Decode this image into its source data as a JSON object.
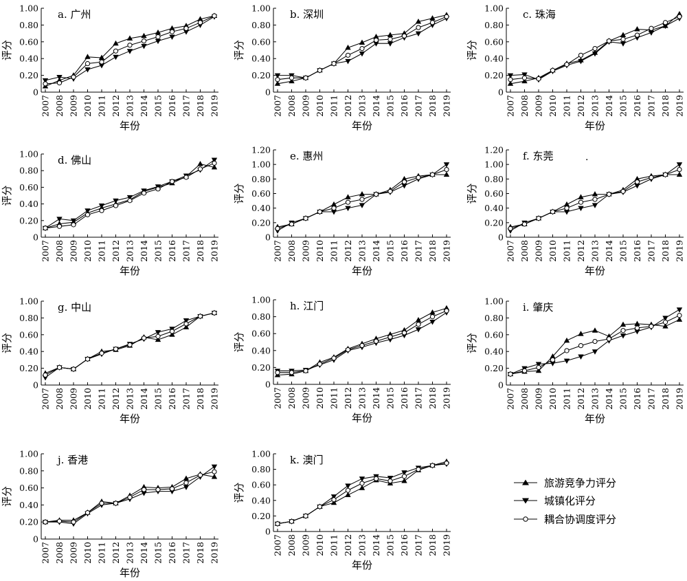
{
  "figure": {
    "xlabel": "年份",
    "ylabel": "评分",
    "legend": {
      "placement": "bottom-right",
      "entries": [
        "旅游竞争力评分",
        "城镇化评分",
        "耦合协调度评分"
      ]
    },
    "stray_mark": "."
  },
  "chart_data": [
    {
      "type": "line",
      "panel": "a",
      "title": "a. 广州",
      "x": [
        "2007",
        "2008",
        "2009",
        "2010",
        "2011",
        "2012",
        "2013",
        "2014",
        "2015",
        "2016",
        "2017",
        "2018",
        "2019"
      ],
      "ylim": [
        0,
        1.0
      ],
      "yticks": [
        "0",
        "0.20",
        "0.40",
        "0.60",
        "0.80",
        "1.00"
      ],
      "series": [
        {
          "name": "旅游竞争力评分",
          "marker": "triangle-up",
          "values": [
            0.07,
            0.14,
            0.2,
            0.42,
            0.41,
            0.58,
            0.64,
            0.67,
            0.71,
            0.76,
            0.79,
            0.87,
            0.91
          ]
        },
        {
          "name": "城镇化评分",
          "marker": "triangle-down",
          "values": [
            0.14,
            0.18,
            0.16,
            0.27,
            0.32,
            0.42,
            0.49,
            0.55,
            0.61,
            0.66,
            0.72,
            0.8,
            0.9
          ]
        },
        {
          "name": "耦合协调度评分",
          "marker": "circle",
          "values": [
            0.1,
            0.11,
            0.18,
            0.34,
            0.36,
            0.49,
            0.56,
            0.61,
            0.66,
            0.72,
            0.76,
            0.83,
            0.91
          ]
        }
      ]
    },
    {
      "type": "line",
      "panel": "b",
      "title": "b. 深圳",
      "x": [
        "2007",
        "2008",
        "2009",
        "2010",
        "2011",
        "2012",
        "2013",
        "2014",
        "2015",
        "2016",
        "2017",
        "2018",
        "2019"
      ],
      "ylim": [
        0,
        1.0
      ],
      "yticks": [
        "0",
        "0.20",
        "0.40",
        "0.60",
        "0.80",
        "1.00"
      ],
      "series": [
        {
          "name": "旅游竞争力评分",
          "marker": "triangle-up",
          "values": [
            0.1,
            0.13,
            0.17,
            0.26,
            0.34,
            0.53,
            0.59,
            0.66,
            0.68,
            0.7,
            0.84,
            0.88,
            0.92
          ]
        },
        {
          "name": "城镇化评分",
          "marker": "triangle-down",
          "values": [
            0.2,
            0.2,
            0.17,
            0.26,
            0.34,
            0.37,
            0.46,
            0.58,
            0.58,
            0.65,
            0.7,
            0.8,
            0.88
          ]
        },
        {
          "name": "耦合协调度评分",
          "marker": "circle",
          "values": [
            0.15,
            0.17,
            0.17,
            0.26,
            0.34,
            0.44,
            0.52,
            0.62,
            0.63,
            0.67,
            0.77,
            0.83,
            0.9
          ]
        }
      ]
    },
    {
      "type": "line",
      "panel": "c",
      "title": "c. 珠海",
      "x": [
        "2007",
        "2008",
        "2009",
        "2010",
        "2011",
        "2012",
        "2013",
        "2014",
        "2015",
        "2016",
        "2017",
        "2018",
        "2019"
      ],
      "ylim": [
        0,
        1.0
      ],
      "yticks": [
        "0",
        "0.20",
        "0.40",
        "0.60",
        "0.80",
        "1.00"
      ],
      "series": [
        {
          "name": "旅游竞争力评分",
          "marker": "triangle-up",
          "values": [
            0.1,
            0.13,
            0.17,
            0.26,
            0.34,
            0.38,
            0.47,
            0.61,
            0.68,
            0.75,
            0.74,
            0.79,
            0.93
          ]
        },
        {
          "name": "城镇化评分",
          "marker": "triangle-down",
          "values": [
            0.2,
            0.21,
            0.15,
            0.25,
            0.32,
            0.37,
            0.46,
            0.6,
            0.58,
            0.65,
            0.71,
            0.79,
            0.88
          ]
        },
        {
          "name": "耦合协调度评分",
          "marker": "circle",
          "values": [
            0.15,
            0.17,
            0.16,
            0.26,
            0.33,
            0.44,
            0.52,
            0.61,
            0.63,
            0.68,
            0.76,
            0.83,
            0.9
          ]
        }
      ]
    },
    {
      "type": "line",
      "panel": "d",
      "title": "d. 佛山",
      "x": [
        "2007",
        "2008",
        "2009",
        "2010",
        "2011",
        "2012",
        "2013",
        "2014",
        "2015",
        "2016",
        "2017",
        "2018",
        "2019"
      ],
      "ylim": [
        0,
        1.0
      ],
      "yticks": [
        "0",
        "0.20",
        "0.40",
        "0.60",
        "0.80",
        "1.00"
      ],
      "series": [
        {
          "name": "旅游竞争力评分",
          "marker": "triangle-up",
          "values": [
            0.11,
            0.16,
            0.18,
            0.29,
            0.35,
            0.4,
            0.45,
            0.55,
            0.6,
            0.65,
            0.73,
            0.88,
            0.84
          ]
        },
        {
          "name": "城镇化评分",
          "marker": "triangle-down",
          "values": [
            0.11,
            0.22,
            0.2,
            0.32,
            0.38,
            0.44,
            0.48,
            0.56,
            0.61,
            0.67,
            0.74,
            0.81,
            0.93
          ]
        },
        {
          "name": "耦合协调度评分",
          "marker": "circle",
          "values": [
            0.11,
            0.13,
            0.15,
            0.27,
            0.32,
            0.38,
            0.44,
            0.53,
            0.58,
            0.67,
            0.72,
            0.82,
            0.89
          ]
        }
      ]
    },
    {
      "type": "line",
      "panel": "e",
      "title": "e. 惠州",
      "x": [
        "2007",
        "2008",
        "2009",
        "2010",
        "2011",
        "2012",
        "2013",
        "2014",
        "2015",
        "2016",
        "2017",
        "2018",
        "2019"
      ],
      "ylim": [
        0,
        1.2
      ],
      "yticks": [
        "0",
        "0.20",
        "0.40",
        "0.60",
        "0.80",
        "1.00",
        "1.20"
      ],
      "series": [
        {
          "name": "旅游竞争力评分",
          "marker": "triangle-up",
          "values": [
            0.14,
            0.18,
            0.26,
            0.35,
            0.45,
            0.55,
            0.59,
            0.59,
            0.65,
            0.8,
            0.84,
            0.86,
            0.86
          ]
        },
        {
          "name": "城镇化评分",
          "marker": "triangle-down",
          "values": [
            0.09,
            0.2,
            0.26,
            0.35,
            0.35,
            0.4,
            0.44,
            0.59,
            0.62,
            0.71,
            0.8,
            0.86,
            1.0
          ]
        },
        {
          "name": "耦合协调度评分",
          "marker": "circle",
          "values": [
            0.12,
            0.18,
            0.26,
            0.35,
            0.4,
            0.48,
            0.52,
            0.59,
            0.63,
            0.76,
            0.82,
            0.86,
            0.93
          ]
        }
      ]
    },
    {
      "type": "line",
      "panel": "f",
      "title": "f. 东莞",
      "x": [
        "2007",
        "2008",
        "2009",
        "2010",
        "2011",
        "2012",
        "2013",
        "2014",
        "2015",
        "2016",
        "2017",
        "2018",
        "2019"
      ],
      "ylim": [
        0,
        1.2
      ],
      "yticks": [
        "0",
        "0.20",
        "0.40",
        "0.60",
        "0.80",
        "1.00",
        "1.20"
      ],
      "series": [
        {
          "name": "旅游竞争力评分",
          "marker": "triangle-up",
          "values": [
            0.14,
            0.18,
            0.26,
            0.35,
            0.45,
            0.55,
            0.59,
            0.59,
            0.65,
            0.8,
            0.84,
            0.86,
            0.86
          ]
        },
        {
          "name": "城镇化评分",
          "marker": "triangle-down",
          "values": [
            0.09,
            0.2,
            0.26,
            0.35,
            0.35,
            0.4,
            0.44,
            0.59,
            0.62,
            0.71,
            0.8,
            0.86,
            1.0
          ]
        },
        {
          "name": "耦合协调度评分",
          "marker": "circle",
          "values": [
            0.12,
            0.18,
            0.26,
            0.35,
            0.4,
            0.48,
            0.52,
            0.59,
            0.63,
            0.76,
            0.82,
            0.86,
            0.93
          ]
        }
      ]
    },
    {
      "type": "line",
      "panel": "g",
      "title": "g. 中山",
      "x": [
        "2007",
        "2008",
        "2009",
        "2010",
        "2011",
        "2012",
        "2013",
        "2014",
        "2015",
        "2016",
        "2017",
        "2018",
        "2019"
      ],
      "ylim": [
        0,
        1.0
      ],
      "yticks": [
        "0",
        "0.20",
        "0.40",
        "0.60",
        "0.80",
        "1.00"
      ],
      "series": [
        {
          "name": "旅游竞争力评分",
          "marker": "triangle-up",
          "values": [
            0.14,
            0.21,
            0.19,
            0.31,
            0.4,
            0.42,
            0.47,
            0.57,
            0.54,
            0.6,
            0.69,
            0.82,
            0.86
          ]
        },
        {
          "name": "城镇化评分",
          "marker": "triangle-down",
          "values": [
            0.09,
            0.21,
            0.19,
            0.31,
            0.37,
            0.43,
            0.49,
            0.55,
            0.63,
            0.67,
            0.77,
            0.82,
            0.86
          ]
        },
        {
          "name": "耦合协调度评分",
          "marker": "circle",
          "values": [
            0.12,
            0.21,
            0.19,
            0.31,
            0.38,
            0.43,
            0.48,
            0.56,
            0.58,
            0.64,
            0.73,
            0.82,
            0.86
          ]
        }
      ]
    },
    {
      "type": "line",
      "panel": "h",
      "title": "h. 江门",
      "x": [
        "2007",
        "2008",
        "2009",
        "2010",
        "2011",
        "2012",
        "2013",
        "2014",
        "2015",
        "2016",
        "2017",
        "2018",
        "2019"
      ],
      "ylim": [
        0,
        1.0
      ],
      "yticks": [
        "0",
        "0.20",
        "0.40",
        "0.60",
        "0.80",
        "1.00"
      ],
      "series": [
        {
          "name": "旅游竞争力评分",
          "marker": "triangle-up",
          "values": [
            0.11,
            0.12,
            0.16,
            0.26,
            0.32,
            0.42,
            0.48,
            0.54,
            0.59,
            0.64,
            0.76,
            0.85,
            0.9
          ]
        },
        {
          "name": "城镇化评分",
          "marker": "triangle-down",
          "values": [
            0.16,
            0.16,
            0.17,
            0.23,
            0.29,
            0.4,
            0.44,
            0.49,
            0.53,
            0.58,
            0.65,
            0.74,
            0.85
          ]
        },
        {
          "name": "耦合协调度评分",
          "marker": "circle",
          "values": [
            0.14,
            0.14,
            0.16,
            0.24,
            0.31,
            0.41,
            0.46,
            0.51,
            0.56,
            0.61,
            0.71,
            0.8,
            0.87
          ]
        }
      ]
    },
    {
      "type": "line",
      "panel": "i",
      "title": "i. 肇庆",
      "x": [
        "2007",
        "2008",
        "2009",
        "2010",
        "2011",
        "2012",
        "2013",
        "2014",
        "2015",
        "2016",
        "2017",
        "2018",
        "2019"
      ],
      "ylim": [
        0,
        1.0
      ],
      "yticks": [
        "0",
        "0.20",
        "0.40",
        "0.60",
        "0.80",
        "1.00"
      ],
      "series": [
        {
          "name": "旅游竞争力评分",
          "marker": "triangle-up",
          "values": [
            0.13,
            0.16,
            0.17,
            0.34,
            0.53,
            0.61,
            0.65,
            0.58,
            0.72,
            0.73,
            0.72,
            0.7,
            0.78
          ]
        },
        {
          "name": "城镇化评分",
          "marker": "triangle-down",
          "values": [
            0.13,
            0.2,
            0.25,
            0.26,
            0.29,
            0.34,
            0.4,
            0.53,
            0.59,
            0.64,
            0.69,
            0.8,
            0.9
          ]
        },
        {
          "name": "耦合协调度评分",
          "marker": "circle",
          "values": [
            0.13,
            0.17,
            0.21,
            0.3,
            0.41,
            0.47,
            0.52,
            0.55,
            0.65,
            0.68,
            0.7,
            0.75,
            0.83
          ]
        }
      ]
    },
    {
      "type": "line",
      "panel": "j",
      "title": "j. 香港",
      "x": [
        "2007",
        "2008",
        "2009",
        "2010",
        "2011",
        "2012",
        "2013",
        "2014",
        "2015",
        "2016",
        "2017",
        "2018",
        "2019"
      ],
      "ylim": [
        0,
        1.0
      ],
      "yticks": [
        "0",
        "0.20",
        "0.40",
        "0.60",
        "0.80",
        "1.00"
      ],
      "series": [
        {
          "name": "旅游竞争力评分",
          "marker": "triangle-up",
          "values": [
            0.2,
            0.22,
            0.22,
            0.31,
            0.44,
            0.42,
            0.51,
            0.61,
            0.6,
            0.61,
            0.71,
            0.76,
            0.73
          ]
        },
        {
          "name": "城镇化评分",
          "marker": "triangle-down",
          "values": [
            0.2,
            0.2,
            0.18,
            0.3,
            0.4,
            0.42,
            0.47,
            0.54,
            0.56,
            0.56,
            0.61,
            0.73,
            0.85
          ]
        },
        {
          "name": "耦合协调度评分",
          "marker": "circle",
          "values": [
            0.2,
            0.21,
            0.2,
            0.31,
            0.42,
            0.42,
            0.49,
            0.58,
            0.58,
            0.59,
            0.66,
            0.75,
            0.79
          ]
        }
      ]
    },
    {
      "type": "line",
      "panel": "k",
      "title": "k. 澳门",
      "x": [
        "2007",
        "2008",
        "2009",
        "2010",
        "2011",
        "2012",
        "2013",
        "2014",
        "2015",
        "2016",
        "2017",
        "2018",
        "2019"
      ],
      "ylim": [
        0,
        1.0
      ],
      "yticks": [
        "0",
        "0.20",
        "0.40",
        "0.60",
        "0.80",
        "1.00"
      ],
      "series": [
        {
          "name": "旅游竞争力评分",
          "marker": "triangle-up",
          "values": [
            0.1,
            0.13,
            0.2,
            0.32,
            0.37,
            0.47,
            0.56,
            0.66,
            0.62,
            0.65,
            0.79,
            0.85,
            0.9
          ]
        },
        {
          "name": "城镇化评分",
          "marker": "triangle-down",
          "values": [
            0.1,
            0.13,
            0.2,
            0.32,
            0.45,
            0.59,
            0.68,
            0.71,
            0.69,
            0.76,
            0.82,
            0.85,
            0.87
          ]
        },
        {
          "name": "耦合协调度评分",
          "marker": "circle",
          "values": [
            0.1,
            0.13,
            0.2,
            0.32,
            0.41,
            0.53,
            0.62,
            0.68,
            0.65,
            0.71,
            0.8,
            0.85,
            0.88
          ]
        }
      ]
    }
  ]
}
